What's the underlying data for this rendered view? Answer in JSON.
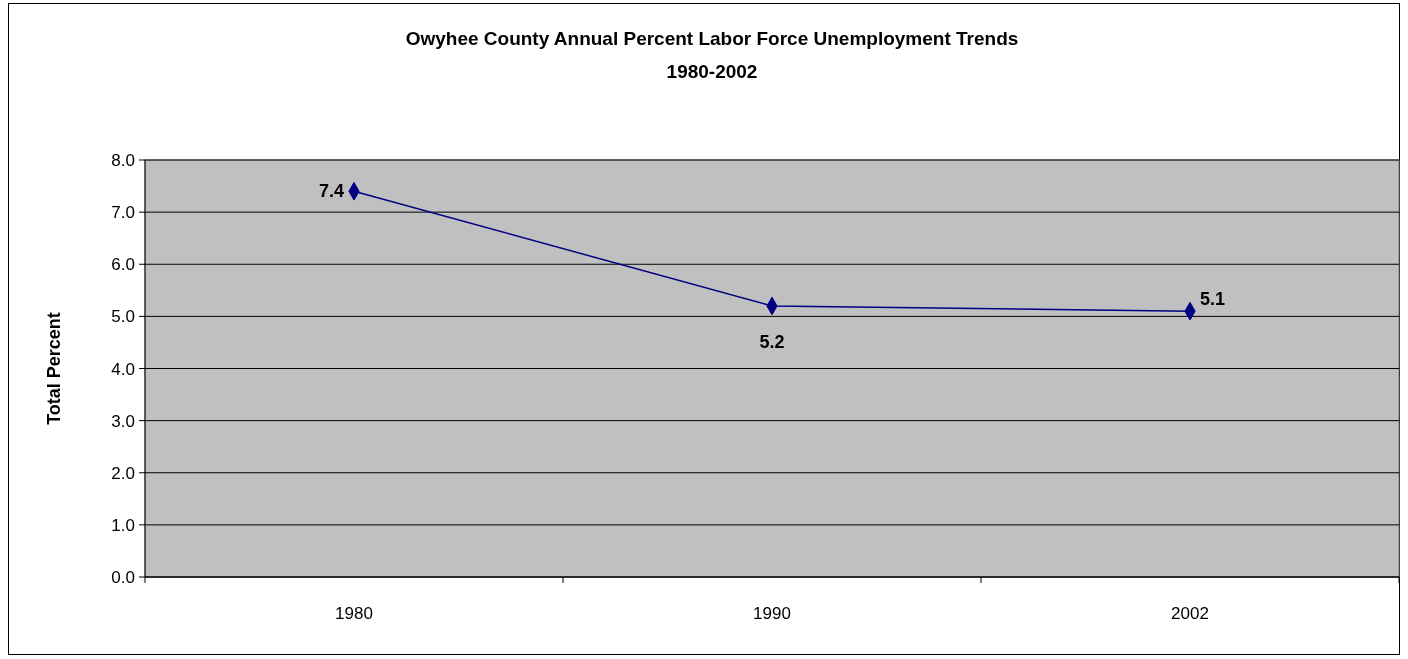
{
  "chart_data": {
    "type": "line",
    "title": "Owyhee County Annual Percent Labor Force Unemployment Trends",
    "subtitle": "1980-2002",
    "ylabel": "Total Percent",
    "categories": [
      "1980",
      "1990",
      "2002"
    ],
    "series": [
      {
        "color": "#000080",
        "values": [
          7.4,
          5.2,
          5.1
        ]
      }
    ],
    "ylim": [
      0,
      8
    ],
    "yticks": [
      {
        "value": 0,
        "label": "0.0"
      },
      {
        "value": 1,
        "label": "1.0"
      },
      {
        "value": 2,
        "label": "2.0"
      },
      {
        "value": 3,
        "label": "3.0"
      },
      {
        "value": 4,
        "label": "4.0"
      },
      {
        "value": 5,
        "label": "5.0"
      },
      {
        "value": 6,
        "label": "6.0"
      },
      {
        "value": 7,
        "label": "7.0"
      },
      {
        "value": 8,
        "label": "8.0"
      }
    ],
    "grid": "y",
    "marker": "diamond",
    "line_style": "solid",
    "data_labels": true
  }
}
